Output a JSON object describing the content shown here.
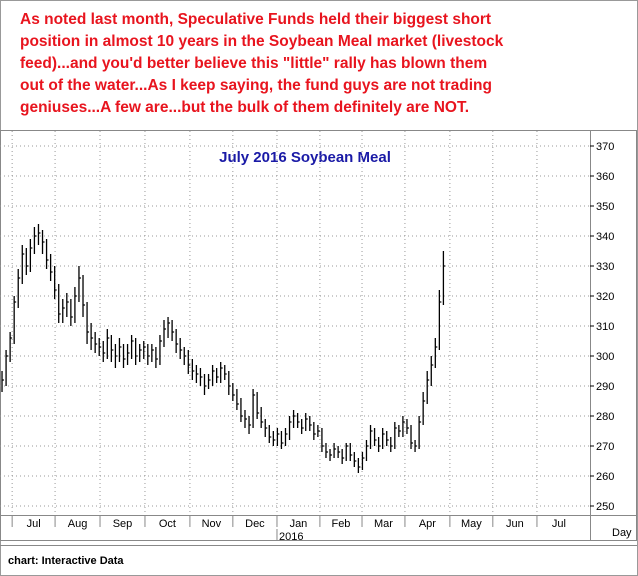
{
  "chart_data": {
    "type": "ohlc",
    "note_lines": [
      "As noted last month, Speculative Funds held their biggest short",
      "position in almost 10 years in the Soybean Meal market (livestock",
      "feed)...and you'd better believe this \"little\" rally has blown them",
      "out of the water...As I keep saying, the fund guys are not trading",
      "geniuses...A few are...but the bulk of them definitely are NOT."
    ],
    "title": "July 2016 Soybean Meal",
    "source": "chart: Interactive Data",
    "x_unit_label": "Day",
    "year_label": "2016",
    "color": "#000000",
    "grid": true,
    "xlim": [
      -0.5,
      145.2
    ],
    "xticks": [
      {
        "value": 2.5,
        "label": "Jul"
      },
      {
        "value": 13.1,
        "label": "Aug"
      },
      {
        "value": 24.2,
        "label": "Sep"
      },
      {
        "value": 35.3,
        "label": "Oct"
      },
      {
        "value": 46.4,
        "label": "Nov"
      },
      {
        "value": 57,
        "label": "Dec"
      },
      {
        "value": 67.9,
        "label": "Jan"
      },
      {
        "value": 78.5,
        "label": "Feb"
      },
      {
        "value": 88.9,
        "label": "Mar"
      },
      {
        "value": 99.5,
        "label": "Apr"
      },
      {
        "value": 110.6,
        "label": "May"
      },
      {
        "value": 121.2,
        "label": "Jun"
      },
      {
        "value": 132.1,
        "label": "Jul"
      }
    ],
    "ylim": [
      247,
      375
    ],
    "yticks": [
      250,
      260,
      270,
      280,
      290,
      300,
      310,
      320,
      330,
      340,
      350,
      360,
      370
    ],
    "x": [
      0,
      1,
      2,
      3,
      4,
      5,
      6,
      7,
      8,
      9,
      10,
      11,
      12,
      13,
      14,
      15,
      16,
      17,
      18,
      19,
      20,
      21,
      22,
      23,
      24,
      25,
      26,
      27,
      28,
      29,
      30,
      31,
      32,
      33,
      34,
      35,
      36,
      37,
      38,
      39,
      40,
      41,
      42,
      43,
      44,
      45,
      46,
      47,
      48,
      49,
      50,
      51,
      52,
      53,
      54,
      55,
      56,
      57,
      58,
      59,
      60,
      61,
      62,
      63,
      64,
      65,
      66,
      67,
      68,
      69,
      70,
      71,
      72,
      73,
      74,
      75,
      76,
      77,
      78,
      79,
      80,
      81,
      82,
      83,
      84,
      85,
      86,
      87,
      88,
      89,
      90,
      91,
      92,
      93,
      94,
      95,
      96,
      97,
      98,
      99,
      100,
      101,
      102,
      103,
      104,
      105,
      106,
      107,
      108,
      109
    ],
    "high": [
      295,
      302,
      308,
      320,
      329,
      337,
      336,
      339,
      343,
      344,
      342,
      339,
      334,
      330,
      324,
      319,
      321,
      319,
      323,
      330,
      327,
      318,
      311,
      308,
      306,
      305,
      309,
      307,
      304,
      306,
      304,
      304,
      307,
      306,
      304,
      305,
      304,
      304,
      303,
      307,
      312,
      313,
      312,
      309,
      306,
      303,
      302,
      299,
      297,
      296,
      294,
      294,
      297,
      296,
      298,
      297,
      295,
      291,
      289,
      286,
      282,
      280,
      289,
      288,
      283,
      279,
      277,
      275,
      276,
      275,
      276,
      280,
      282,
      281,
      279,
      281,
      280,
      278,
      277,
      276,
      271,
      269,
      271,
      270,
      269,
      271,
      271,
      268,
      266,
      268,
      272,
      277,
      276,
      273,
      276,
      275,
      273,
      278,
      277,
      280,
      279,
      277,
      272,
      280,
      288,
      295,
      300,
      306,
      322,
      335
    ],
    "low": [
      288,
      290,
      298,
      304,
      316,
      324,
      327,
      328,
      334,
      337,
      334,
      329,
      325,
      319,
      311,
      311,
      313,
      310,
      311,
      318,
      313,
      304,
      302,
      301,
      300,
      298,
      299,
      298,
      296,
      298,
      296,
      297,
      299,
      297,
      298,
      299,
      297,
      298,
      296,
      297,
      303,
      306,
      305,
      301,
      299,
      297,
      294,
      292,
      291,
      290,
      287,
      289,
      290,
      291,
      291,
      292,
      287,
      285,
      282,
      278,
      276,
      274,
      276,
      279,
      276,
      273,
      271,
      270,
      270,
      269,
      270,
      272,
      276,
      276,
      274,
      275,
      275,
      272,
      273,
      268,
      266,
      265,
      266,
      266,
      264,
      265,
      265,
      263,
      261,
      262,
      265,
      269,
      270,
      268,
      269,
      270,
      268,
      269,
      273,
      273,
      274,
      269,
      268,
      269,
      277,
      284,
      290,
      296,
      302,
      317
    ],
    "close": [
      292,
      300,
      306,
      318,
      326,
      334,
      330,
      336,
      340,
      341,
      338,
      332,
      328,
      322,
      314,
      316,
      318,
      313,
      320,
      326,
      317,
      308,
      306,
      304,
      303,
      301,
      306,
      302,
      300,
      303,
      299,
      301,
      305,
      300,
      302,
      303,
      300,
      302,
      299,
      305,
      309,
      311,
      308,
      304,
      302,
      300,
      297,
      295,
      294,
      293,
      290,
      292,
      295,
      293,
      296,
      294,
      290,
      287,
      284,
      280,
      279,
      277,
      287,
      281,
      278,
      276,
      273,
      272,
      274,
      271,
      274,
      278,
      280,
      278,
      276,
      279,
      277,
      274,
      275,
      270,
      268,
      267,
      269,
      268,
      266,
      270,
      267,
      265,
      263,
      266,
      270,
      275,
      272,
      270,
      274,
      272,
      270,
      276,
      275,
      278,
      276,
      271,
      270,
      278,
      285,
      292,
      297,
      303,
      318,
      330
    ]
  }
}
